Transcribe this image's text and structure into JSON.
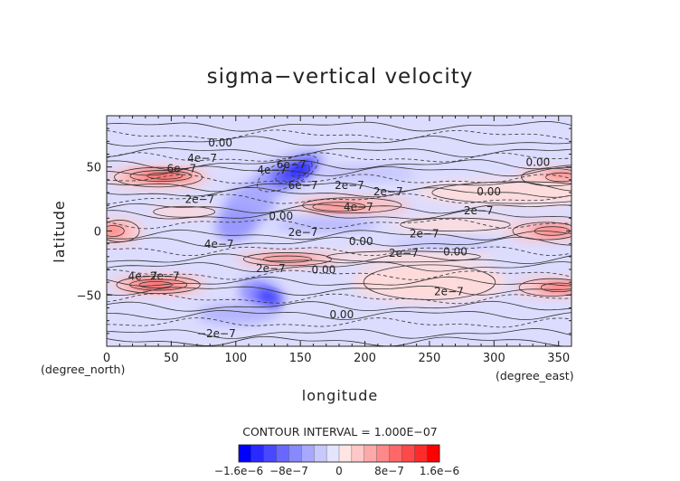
{
  "chart_data": {
    "type": "heatmap",
    "title": "sigma−vertical velocity",
    "xlabel": "longitude",
    "ylabel": "latitude",
    "x_unit": "(degree_east)",
    "y_unit": "(degree_north)",
    "xlim": [
      0,
      360
    ],
    "ylim": [
      -90,
      90
    ],
    "x_ticks": [
      0,
      50,
      100,
      150,
      200,
      250,
      300,
      350
    ],
    "y_ticks": [
      -50,
      0,
      50
    ],
    "x_tick_labels": [
      "0",
      "50",
      "100",
      "150",
      "200",
      "250",
      "300",
      "350"
    ],
    "y_tick_labels": [
      "−50",
      "0",
      "50"
    ],
    "contour_interval": "CONTOUR INTERVAL = 1.000E−07",
    "colorbar": {
      "tick_labels": [
        "−1.6e−6",
        "−8e−7",
        "0",
        "8e−7",
        "1.6e−6"
      ],
      "levels": [
        -1.6e-06,
        -1.4e-06,
        -1.2e-06,
        -1e-06,
        -8e-07,
        -6e-07,
        -4e-07,
        -2e-07,
        0,
        2e-07,
        4e-07,
        6e-07,
        8e-07,
        1e-06,
        1.2e-06,
        1.4e-06,
        1.6e-06
      ],
      "colors": [
        "#0000ff",
        "#2a2aff",
        "#4848ff",
        "#6868ff",
        "#8888ff",
        "#a8a8ff",
        "#c8c8ff",
        "#e4e4ff",
        "#ffe4e4",
        "#ffc8c8",
        "#ffa8a8",
        "#ff8888",
        "#ff6868",
        "#ff4848",
        "#ff2a2a",
        "#ff0000"
      ]
    },
    "contour_labels": [
      {
        "text": "0.00",
        "lon": 88,
        "lat": 66
      },
      {
        "text": "4e−7",
        "lon": 74,
        "lat": 54
      },
      {
        "text": "6e−7",
        "lon": 58,
        "lat": 46
      },
      {
        "text": "4e−7",
        "lon": 128,
        "lat": 45
      },
      {
        "text": "6e−7",
        "lon": 143,
        "lat": 49
      },
      {
        "text": "6e−7",
        "lon": 152,
        "lat": 33
      },
      {
        "text": "2e−7",
        "lon": 188,
        "lat": 33
      },
      {
        "text": "2e−7",
        "lon": 218,
        "lat": 28
      },
      {
        "text": "0.00",
        "lon": 296,
        "lat": 28
      },
      {
        "text": "0.00",
        "lon": 334,
        "lat": 51
      },
      {
        "text": "2e−7",
        "lon": 72,
        "lat": 22
      },
      {
        "text": "0.00",
        "lon": 135,
        "lat": 9
      },
      {
        "text": "4e−7",
        "lon": 195,
        "lat": 16
      },
      {
        "text": "2e−7",
        "lon": 288,
        "lat": 13
      },
      {
        "text": "2e−7",
        "lon": 152,
        "lat": -4
      },
      {
        "text": "0.00",
        "lon": 197,
        "lat": -11
      },
      {
        "text": "2e−7",
        "lon": 246,
        "lat": -5
      },
      {
        "text": "2e−7",
        "lon": 230,
        "lat": -20
      },
      {
        "text": "0.00",
        "lon": 270,
        "lat": -19
      },
      {
        "text": "4e−7",
        "lon": 87,
        "lat": -13
      },
      {
        "text": "4e−7",
        "lon": 28,
        "lat": -38
      },
      {
        "text": "2e−7",
        "lon": 45,
        "lat": -38
      },
      {
        "text": "2e−7",
        "lon": 127,
        "lat": -32
      },
      {
        "text": "0.00",
        "lon": 168,
        "lat": -33
      },
      {
        "text": "2e−7",
        "lon": 265,
        "lat": -50
      },
      {
        "text": "0.00",
        "lon": 182,
        "lat": -68
      },
      {
        "text": "−2e−7",
        "lon": 85,
        "lat": -83
      }
    ]
  }
}
